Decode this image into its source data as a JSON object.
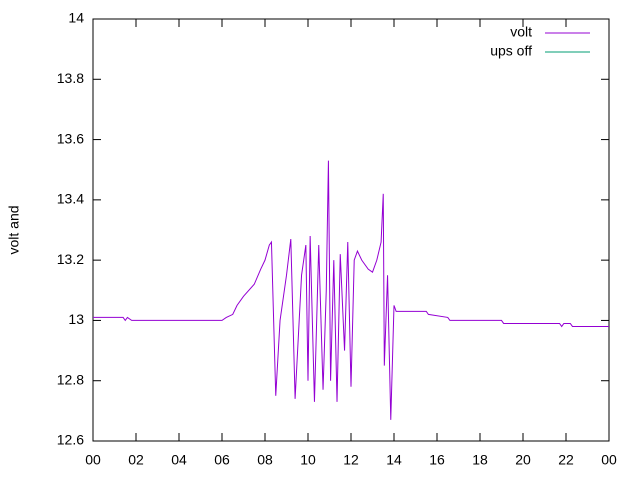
{
  "chart_data": {
    "type": "line",
    "ylabel": "volt and",
    "xlim": [
      0,
      24
    ],
    "xticks": [
      {
        "value": 0,
        "label": "00"
      },
      {
        "value": 2,
        "label": "02"
      },
      {
        "value": 4,
        "label": "04"
      },
      {
        "value": 6,
        "label": "06"
      },
      {
        "value": 8,
        "label": "08"
      },
      {
        "value": 10,
        "label": "10"
      },
      12,
      14,
      16,
      18,
      20,
      22,
      {
        "value": 24,
        "label": "00"
      }
    ],
    "ylim": [
      12.6,
      14
    ],
    "yticks": [
      12.6,
      12.8,
      13,
      13.2,
      13.4,
      13.6,
      13.8,
      14
    ],
    "legend": "top-right",
    "series": [
      {
        "name": "volt",
        "color": "#9400d3",
        "x": [
          0,
          1.4,
          1.5,
          1.6,
          1.8,
          2,
          6,
          6.2,
          6.5,
          6.7,
          7,
          7.5,
          7.8,
          8,
          8.2,
          8.3,
          8.5,
          8.7,
          9,
          9.2,
          9.4,
          9.7,
          9.9,
          10,
          10.1,
          10.3,
          10.5,
          10.7,
          10.85,
          10.95,
          11.05,
          11.2,
          11.35,
          11.5,
          11.7,
          11.85,
          12,
          12.15,
          12.3,
          12.5,
          12.8,
          13,
          13.2,
          13.4,
          13.5,
          13.55,
          13.7,
          13.85,
          14,
          14.1,
          15.5,
          15.6,
          16.5,
          16.6,
          19,
          19.1,
          21.7,
          21.8,
          21.9,
          22.2,
          22.3,
          24
        ],
        "values": [
          13.01,
          13.01,
          13,
          13.01,
          13,
          13,
          13,
          13.01,
          13.02,
          13.05,
          13.08,
          13.12,
          13.17,
          13.2,
          13.25,
          13.26,
          12.75,
          13,
          13.15,
          13.27,
          12.74,
          13.15,
          13.25,
          12.8,
          13.28,
          12.73,
          13.25,
          12.77,
          13.1,
          13.53,
          12.8,
          13.2,
          12.73,
          13.22,
          12.9,
          13.26,
          12.78,
          13.2,
          13.23,
          13.2,
          13.17,
          13.16,
          13.2,
          13.26,
          13.42,
          12.85,
          13.15,
          12.67,
          13.05,
          13.03,
          13.03,
          13.02,
          13.01,
          13,
          13,
          12.99,
          12.99,
          12.98,
          12.99,
          12.99,
          12.98,
          12.98
        ]
      },
      {
        "name": "ups off",
        "color": "#009e73",
        "x": [],
        "values": []
      }
    ]
  }
}
